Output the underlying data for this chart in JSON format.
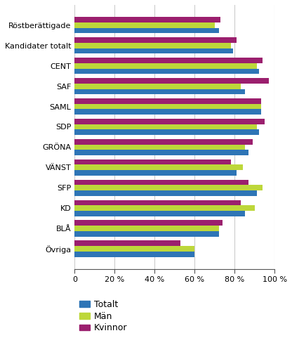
{
  "categories": [
    "Röstberättigade",
    "Kandidater totalt",
    "CENT",
    "SAF",
    "SAML",
    "SDP",
    "GRÖNA",
    "VÄNST",
    "SFP",
    "KD",
    "BLÅ",
    "Övriga"
  ],
  "totalt": [
    72,
    79,
    92,
    85,
    93,
    92,
    87,
    81,
    91,
    85,
    72,
    60
  ],
  "man": [
    70,
    78,
    91,
    83,
    93,
    91,
    85,
    84,
    94,
    90,
    72,
    60
  ],
  "kvinnor": [
    73,
    81,
    94,
    97,
    93,
    95,
    89,
    78,
    87,
    83,
    74,
    53
  ],
  "color_totalt": "#2e75b6",
  "color_man": "#bdd73a",
  "color_kvinnor": "#9b1f6e",
  "legend_labels": [
    "Totalt",
    "Män",
    "Kvinnor"
  ],
  "xlim": [
    0,
    100
  ],
  "xticks": [
    0,
    20,
    40,
    60,
    80,
    100
  ],
  "xtick_labels": [
    "0",
    "20 %",
    "40 %",
    "60 %",
    "80 %",
    "100 %"
  ],
  "background_color": "#ffffff",
  "grid_color": "#cccccc"
}
